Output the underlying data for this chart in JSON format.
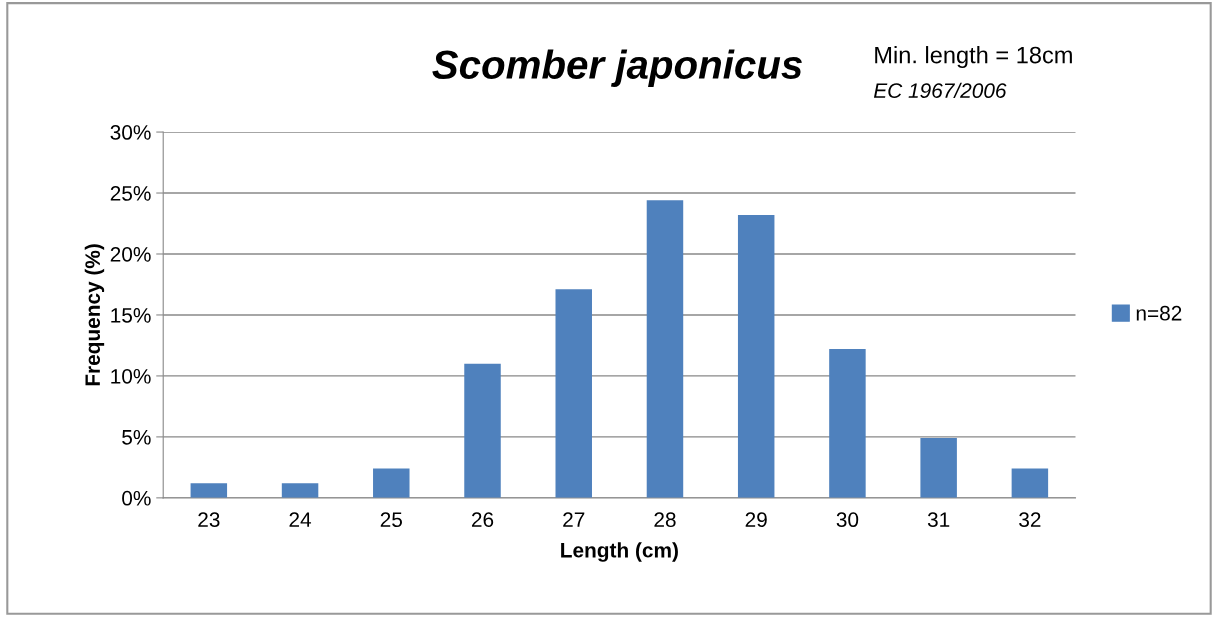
{
  "chart_data": {
    "type": "bar",
    "title": "Scomber japonicus",
    "annotations": [
      "Min. length = 18cm",
      "EC 1967/2006"
    ],
    "xlabel": "Length (cm)",
    "ylabel": "Frequency (%)",
    "categories": [
      "23",
      "24",
      "25",
      "26",
      "27",
      "28",
      "29",
      "30",
      "31",
      "32"
    ],
    "series": [
      {
        "name": "n=82",
        "color": "#4f81bd",
        "values": [
          1.2,
          1.2,
          2.4,
          11.0,
          17.1,
          24.4,
          23.2,
          12.2,
          4.9,
          2.4
        ]
      }
    ],
    "ylim": [
      0,
      30
    ],
    "yticks": [
      {
        "value": 0,
        "label": "0%"
      },
      {
        "value": 5,
        "label": "5%"
      },
      {
        "value": 10,
        "label": "10%"
      },
      {
        "value": 15,
        "label": "15%"
      },
      {
        "value": 20,
        "label": "20%"
      },
      {
        "value": 25,
        "label": "25%"
      },
      {
        "value": 30,
        "label": "30%"
      }
    ],
    "grid": "y",
    "legend": "right"
  }
}
